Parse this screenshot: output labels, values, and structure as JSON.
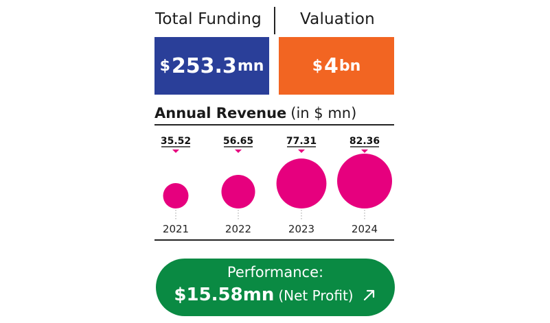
{
  "header": {
    "funding_label": "Total Funding",
    "valuation_label": "Valuation"
  },
  "funding": {
    "currency": "$",
    "value": "253.3",
    "unit": "mn"
  },
  "valuation": {
    "currency": "$",
    "value": "4",
    "unit": "bn"
  },
  "revenue": {
    "title": "Annual Revenue",
    "unit_note": "(in $ mn)"
  },
  "performance": {
    "label": "Performance:",
    "amount": "$15.58mn",
    "note": "(Net Profit)",
    "arrow_icon": "arrow-up-right-icon"
  },
  "colors": {
    "funding_bg": "#2a3f99",
    "valuation_bg": "#f26522",
    "bubble": "#e6007e",
    "performance_bg": "#0a8a43"
  },
  "chart_data": {
    "type": "bubble",
    "title": "Annual Revenue",
    "unit": "$ mn",
    "x": [
      "2021",
      "2022",
      "2023",
      "2024"
    ],
    "values": [
      35.52,
      56.65,
      77.31,
      82.36
    ],
    "value_labels": [
      "35.52",
      "56.65",
      "77.31",
      "82.36"
    ]
  }
}
